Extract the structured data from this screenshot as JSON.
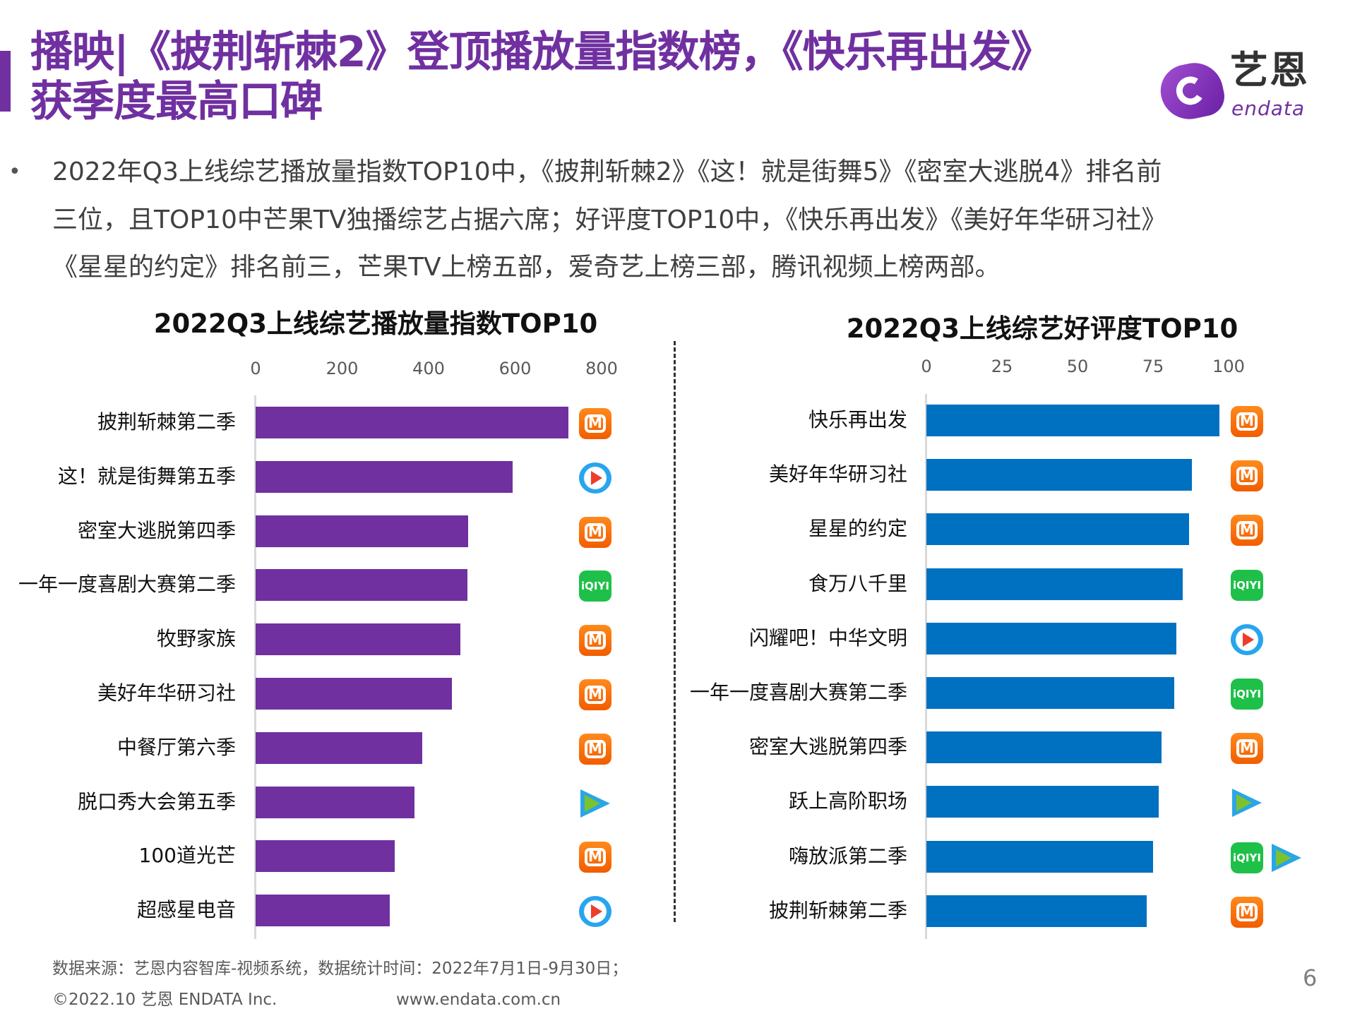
{
  "header": {
    "title_line1": "播映|《披荆斩棘2》登顶播放量指数榜，《快乐再出发》",
    "title_line2": "获季度最高口碑",
    "logo_cn": "艺恩",
    "logo_en": "endata",
    "accent_color": "#7030a0"
  },
  "summary": {
    "bullet": "•",
    "lines": [
      "2022年Q3上线综艺播放量指数TOP10中，《披荆斩棘2》《这！就是街舞5》《密室大逃脱4》排名前",
      "三位，且TOP10中芒果TV独播综艺占据六席；好评度TOP10中，《快乐再出发》《美好年华研习社》",
      "《星星的约定》排名前三，芒果TV上榜五部，爱奇艺上榜三部，腾讯视频上榜两部。"
    ]
  },
  "platform_icons": {
    "mgtv": "mgtv-icon",
    "iqiyi": "iqiyi-icon",
    "youku": "youku-icon",
    "tencent": "tencent-video-icon",
    "iqiyi_logo_text": "iQIYI"
  },
  "chart_data": [
    {
      "type": "bar",
      "orientation": "horizontal",
      "title": "2022Q3上线综艺播放量指数TOP10",
      "xlim": [
        0,
        800
      ],
      "ticks": [
        "0",
        "200",
        "400",
        "600",
        "800"
      ],
      "tick_values": [
        0,
        200,
        400,
        600,
        800
      ],
      "grid": false,
      "color": "#7030a0",
      "categories": [
        "披荆斩棘第二季",
        "这！就是街舞第五季",
        "密室大逃脱第四季",
        "一年一度喜剧大赛第二季",
        "牧野家族",
        "美好年华研习社",
        "中餐厅第六季",
        "脱口秀大会第五季",
        "100道光芒",
        "超感星电音"
      ],
      "values": [
        723,
        595,
        491,
        490,
        473,
        454,
        385,
        367,
        322,
        311
      ],
      "platforms": [
        [
          "mgtv"
        ],
        [
          "youku"
        ],
        [
          "mgtv"
        ],
        [
          "iqiyi"
        ],
        [
          "mgtv"
        ],
        [
          "mgtv"
        ],
        [
          "mgtv"
        ],
        [
          "tencent"
        ],
        [
          "mgtv"
        ],
        [
          "youku"
        ]
      ]
    },
    {
      "type": "bar",
      "orientation": "horizontal",
      "title": "2022Q3上线综艺好评度TOP10",
      "xlim": [
        0,
        100
      ],
      "ticks": [
        "0",
        "25",
        "50",
        "75",
        "100"
      ],
      "tick_values": [
        0,
        25,
        50,
        75,
        100
      ],
      "grid": false,
      "color": "#0070c0",
      "categories": [
        "快乐再出发",
        "美好年华研习社",
        "星星的约定",
        "食万八千里",
        "闪耀吧！中华文明",
        "一年一度喜剧大赛第二季",
        "密室大逃脱第四季",
        "跃上高阶职场",
        "嗨放派第二季",
        "披荆斩棘第二季"
      ],
      "values": [
        96.9,
        87.8,
        86.8,
        84.8,
        82.8,
        81.9,
        77.7,
        76.8,
        74.9,
        72.8
      ],
      "platforms": [
        [
          "mgtv"
        ],
        [
          "mgtv"
        ],
        [
          "mgtv"
        ],
        [
          "iqiyi"
        ],
        [
          "youku"
        ],
        [
          "iqiyi"
        ],
        [
          "mgtv"
        ],
        [
          "tencent"
        ],
        [
          "iqiyi",
          "tencent"
        ],
        [
          "mgtv"
        ]
      ]
    }
  ],
  "footer": {
    "source": "数据来源：艺恩内容智库-视频系统，数据统计时间：2022年7月1日-9月30日；",
    "copyright": "©2022.10 艺恩 ENDATA Inc.",
    "website": "www.endata.com.cn",
    "page_number": "6"
  }
}
